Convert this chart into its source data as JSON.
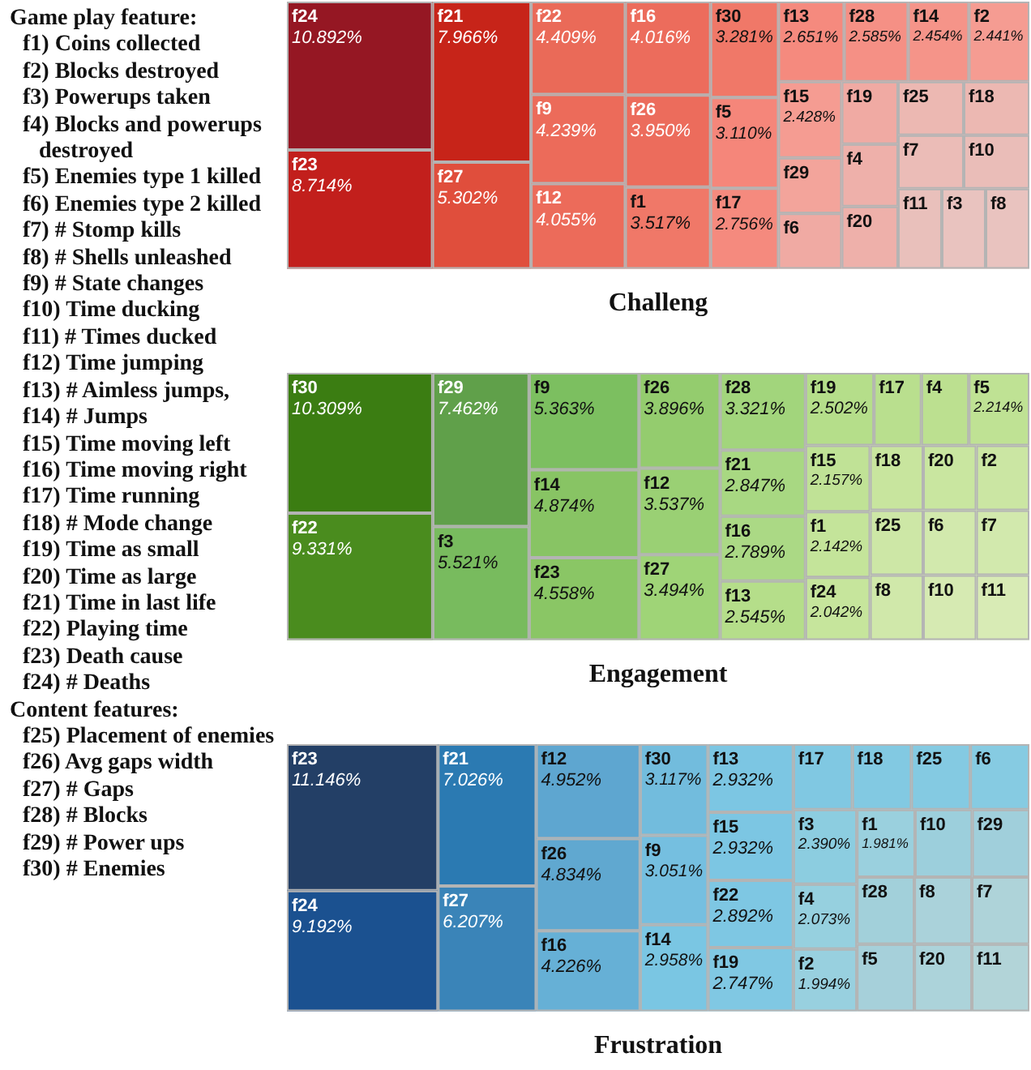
{
  "chart_data": [
    {
      "type": "other",
      "title": "Game play feature:",
      "annotations": [
        "f1) Coins collected",
        "f2) Blocks destroyed",
        "f3) Powerups taken",
        "f4) Blocks and powerups destroyed",
        "f5) Enemies type 1 killed",
        "f6) Enemies type 2 killed",
        "f7) # Stomp kills",
        "f8) # Shells unleashed",
        "f9) # State changes",
        "f10) Time ducking",
        "f11) # Times ducked",
        "f12) Time jumping",
        "f13) # Aimless jumps,",
        "f14) # Jumps",
        "f15) Time moving left",
        "f16) Time moving right",
        "f17) Time running",
        "f18) # Mode change",
        "f19) Time as small",
        "f20) Time as large",
        "f21) Time in last life",
        "f22) Playing time",
        "f23) Death cause",
        "f24) # Deaths"
      ]
    },
    {
      "type": "other",
      "title": "Content features:",
      "annotations": [
        "f25) Placement of enemies",
        "f26) Avg gaps width",
        "f27) # Gaps",
        "f28) # Blocks",
        "f29) # Power ups",
        "f30) # Enemies"
      ]
    },
    {
      "type": "other",
      "title": "Challeng",
      "categories": [
        "f24",
        "f23",
        "f21",
        "f27",
        "f22",
        "f9",
        "f12",
        "f16",
        "f26",
        "f1",
        "f30",
        "f5",
        "f17",
        "f13",
        "f28",
        "f14",
        "f2",
        "f15",
        "f29",
        "f6",
        "f19",
        "f4",
        "f20",
        "f25",
        "f18",
        "f7",
        "f10",
        "f11",
        "f3",
        "f8"
      ],
      "values": [
        10.892,
        8.714,
        7.966,
        5.302,
        4.409,
        4.239,
        4.055,
        4.016,
        3.95,
        3.517,
        3.281,
        3.11,
        2.756,
        2.651,
        2.585,
        2.454,
        2.441,
        2.428,
        null,
        null,
        null,
        null,
        null,
        null,
        null,
        null,
        null,
        null,
        null,
        null
      ],
      "value_labels": [
        "10.892%",
        "8.714%",
        "7.966%",
        "5.302%",
        "4.409%",
        "4.239%",
        "4.055%",
        "4.016%",
        "3.950%",
        "3.517%",
        "3.281%",
        "3.110%",
        "2.756%",
        "2.651%",
        "2.585%",
        "2.454%",
        "2.441%",
        "2.428%",
        null,
        null,
        null,
        null,
        null,
        null,
        null,
        null,
        null,
        null,
        null,
        null
      ],
      "colors": [
        "#951723",
        "#c21f1c",
        "#c72419",
        "#e04e3c",
        "#ea6a58",
        "#ec6b5a",
        "#ec6b5a",
        "#ec6c5c",
        "#ec6c5c",
        "#f07868",
        "#f07868",
        "#f5867a",
        "#f58a7e",
        "#f58a7e",
        "#f59085",
        "#f59489",
        "#f59c92",
        "#f59c92",
        "#f3a49b",
        "#f0aaa3",
        "#f0aaa3",
        "#eeb0aa",
        "#eeb0aa",
        "#ecb8b2",
        "#ecb8b2",
        "#ebbcb7",
        "#eabdb8",
        "#e9c0bb",
        "#e9c3bf",
        "#e9c3bf"
      ]
    },
    {
      "type": "other",
      "title": "Engagement",
      "categories": [
        "f30",
        "f22",
        "f29",
        "f3",
        "f9",
        "f14",
        "f23",
        "f26",
        "f12",
        "f27",
        "f28",
        "f21",
        "f16",
        "f13",
        "f19",
        "f17",
        "f4",
        "f5",
        "f15",
        "f1",
        "f24",
        "f18",
        "f20",
        "f2",
        "f25",
        "f8",
        "f6",
        "f7",
        "f10",
        "f11"
      ],
      "values": [
        10.309,
        9.331,
        7.462,
        5.521,
        5.363,
        4.874,
        4.558,
        3.896,
        3.537,
        3.494,
        3.321,
        2.847,
        2.789,
        2.545,
        2.502,
        null,
        null,
        2.214,
        2.157,
        2.142,
        2.042,
        null,
        null,
        null,
        null,
        null,
        null,
        null,
        null,
        null
      ],
      "value_labels": [
        "10.309%",
        "9.331%",
        "7.462%",
        "5.521%",
        "5.363%",
        "4.874%",
        "4.558%",
        "3.896%",
        "3.537%",
        "3.494%",
        "3.321%",
        "2.847%",
        "2.789%",
        "2.545%",
        "2.502%",
        null,
        null,
        "2.214%",
        "2.157%",
        "2.142%",
        "2.042%",
        null,
        null,
        null,
        null,
        null,
        null,
        null,
        null,
        null
      ],
      "colors": [
        "#3b7d12",
        "#4a8c1e",
        "#60a04a",
        "#78bb5e",
        "#7cbf60",
        "#88c464",
        "#8ac665",
        "#94cc6e",
        "#9ad074",
        "#9fd477",
        "#a2d57c",
        "#a8d882",
        "#abd985",
        "#b5de8a",
        "#b5de8a",
        "#b9df8e",
        "#bce090",
        "#bfe294",
        "#c0e296",
        "#c4e49a",
        "#c6e59c",
        "#c8e59e",
        "#c9e6a0",
        "#cbe6a3",
        "#cde7a6",
        "#d0e8aa",
        "#d2e9ad",
        "#d2e9ad",
        "#d6eab2",
        "#d8ebb5"
      ]
    },
    {
      "type": "other",
      "title": "Frustration",
      "categories": [
        "f23",
        "f24",
        "f21",
        "f27",
        "f12",
        "f26",
        "f16",
        "f30",
        "f9",
        "f14",
        "f13",
        "f15",
        "f22",
        "f19",
        "f17",
        "f18",
        "f25",
        "f6",
        "f3",
        "f4",
        "f2",
        "f1",
        "f10",
        "f29",
        "f28",
        "f5",
        "f8",
        "f7",
        "f20",
        "f11"
      ],
      "values": [
        11.146,
        9.192,
        7.026,
        6.207,
        4.952,
        4.834,
        4.226,
        3.117,
        3.051,
        2.958,
        2.932,
        2.932,
        2.892,
        2.747,
        null,
        null,
        null,
        null,
        2.39,
        2.073,
        1.994,
        1.981,
        null,
        null,
        null,
        null,
        null,
        null,
        null,
        null
      ],
      "value_labels": [
        "11.146%",
        "9.192%",
        "7.026%",
        "6.207%",
        "4.952%",
        "4.834%",
        "4.226%",
        "3.117%",
        "3.051%",
        "2.958%",
        "2.932%",
        "2.932%",
        "2.892%",
        "2.747%",
        null,
        null,
        null,
        null,
        "2.390%",
        "2.073%",
        "1.994%",
        "1.981%",
        null,
        null,
        null,
        null,
        null,
        null,
        null,
        null
      ],
      "colors": [
        "#233f66",
        "#1b5190",
        "#2b7ab2",
        "#3a84b8",
        "#5ea6d0",
        "#60a8d0",
        "#66b0d6",
        "#72bcdd",
        "#75bfe0",
        "#7ac6e3",
        "#7cc6e3",
        "#7cc6e3",
        "#7ec7e3",
        "#80c8e3",
        "#80c8e2",
        "#82c9e2",
        "#84cae2",
        "#86cbe2",
        "#8ccde0",
        "#96d0df",
        "#98d0df",
        "#9ad0de",
        "#9ccfdc",
        "#a0cfdb",
        "#a2d0da",
        "#a6d0da",
        "#aad2da",
        "#aed3d9",
        "#acd3da",
        "#b2d4d8"
      ]
    }
  ]
}
